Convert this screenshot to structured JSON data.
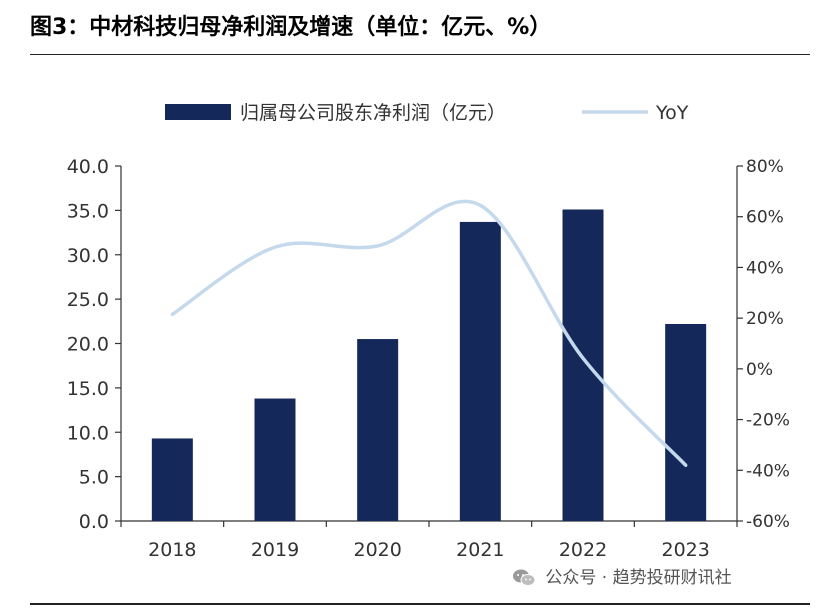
{
  "figure": {
    "title": "图3：中材科技归母净利润及增速（单位：亿元、%）"
  },
  "watermark": {
    "text": "公众号 · 趋势投研财讯社",
    "icon": "wechat-icon"
  },
  "colors": {
    "bar": "#14295a",
    "line": "#c5d9ec",
    "axis": "#333333",
    "text": "#333333"
  },
  "chart_data": {
    "type": "bar",
    "categories": [
      "2018",
      "2019",
      "2020",
      "2021",
      "2022",
      "2023"
    ],
    "series": [
      {
        "name": "归属母公司股东净利润（亿元）",
        "type": "bar",
        "axis": "left",
        "values": [
          9.3,
          13.8,
          20.5,
          33.7,
          35.1,
          22.2
        ]
      },
      {
        "name": "YoY",
        "type": "line",
        "axis": "right",
        "values": [
          21.5,
          48.0,
          48.5,
          64.5,
          4.2,
          -38.0
        ]
      }
    ],
    "y_left": {
      "range": [
        0,
        40
      ],
      "ticks": [
        0,
        5,
        10,
        15,
        20,
        25,
        30,
        35,
        40
      ],
      "tick_labels": [
        "0.0",
        "5.0",
        "10.0",
        "15.0",
        "20.0",
        "25.0",
        "30.0",
        "35.0",
        "40.0"
      ]
    },
    "y_right": {
      "range": [
        -60,
        80
      ],
      "ticks": [
        -60,
        -40,
        -20,
        0,
        20,
        40,
        60,
        80
      ],
      "tick_labels": [
        "-60%",
        "-40%",
        "-20%",
        "0%",
        "20%",
        "40%",
        "60%",
        "80%"
      ]
    },
    "legend_position": "top",
    "grid": false
  }
}
